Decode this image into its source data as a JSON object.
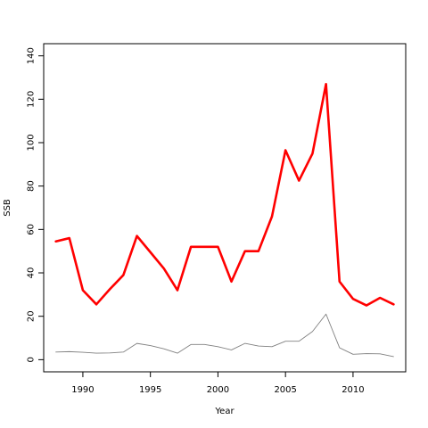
{
  "chart_data": {
    "type": "line",
    "title": "",
    "xlabel": "Year",
    "ylabel": "SSB",
    "xlim": [
      1987.1,
      2013.9
    ],
    "ylim": [
      -5.6,
      145.6
    ],
    "x_ticks": [
      1990,
      1995,
      2000,
      2005,
      2010
    ],
    "y_ticks": [
      0,
      20,
      40,
      60,
      80,
      100,
      120,
      140
    ],
    "grid": false,
    "x": [
      1988,
      1989,
      1990,
      1991,
      1992,
      1993,
      1994,
      1995,
      1996,
      1997,
      1998,
      1999,
      2000,
      2001,
      2002,
      2003,
      2004,
      2005,
      2006,
      2007,
      2008,
      2009,
      2010,
      2011,
      2012,
      2013
    ],
    "series": [
      {
        "color": "#ff0000",
        "values": [
          54.5,
          56,
          32,
          25.5,
          32.5,
          39,
          57,
          49.5,
          42,
          32,
          52,
          52,
          52,
          36,
          50,
          50,
          66,
          96.5,
          82.5,
          95,
          127,
          36,
          28,
          25,
          28.5,
          25.5
        ]
      },
      {
        "color": "#808080",
        "values": [
          3.5,
          3.7,
          3.4,
          3,
          3.1,
          3.5,
          7.5,
          6.5,
          5,
          3,
          7,
          7,
          6,
          4.5,
          7.5,
          6.3,
          6,
          8.5,
          8.5,
          13,
          21,
          5.5,
          2.5,
          2.8,
          2.7,
          1.4
        ]
      }
    ]
  }
}
